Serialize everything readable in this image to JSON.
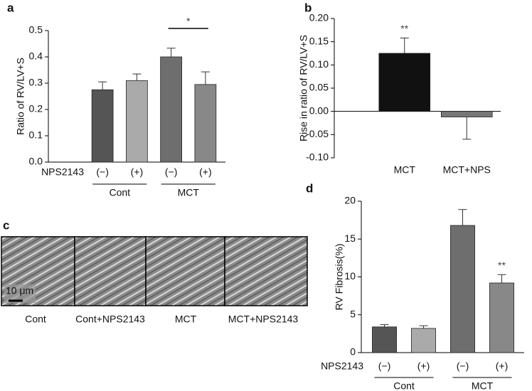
{
  "chart_data": [
    {
      "type": "bar",
      "panel": "a",
      "y_label": "Ratio of RV/LV+S",
      "row_label": "NPS2143",
      "categories": [
        "(−)",
        "(+)",
        "(−)",
        "(+)"
      ],
      "groups": [
        "Cont",
        "MCT"
      ],
      "values": [
        0.275,
        0.31,
        0.4,
        0.295
      ],
      "errors": [
        0.03,
        0.025,
        0.033,
        0.048
      ],
      "colors": [
        "#555555",
        "#aaaaaa",
        "#6e6e6e",
        "#888888"
      ],
      "ylim": [
        0,
        0.5
      ],
      "yticks": [
        {
          "value": 0,
          "label": "0.0"
        },
        0.1,
        0.2,
        0.3,
        0.4,
        0.5
      ],
      "annotations": [
        "*"
      ]
    },
    {
      "type": "bar",
      "panel": "b",
      "y_label": "Rise in ratio of RV/LV+S",
      "categories": [
        "MCT",
        "MCT+NPS"
      ],
      "values": [
        0.125,
        -0.012
      ],
      "errors": [
        0.033,
        0.048
      ],
      "colors": [
        "#111111",
        "#777777"
      ],
      "ylim": [
        -0.1,
        0.2
      ],
      "yticks": [
        {
          "value": -0.1,
          "label": "-0.10"
        },
        {
          "value": -0.05,
          "label": "-0.05"
        },
        {
          "value": 0,
          "label": "0.00"
        },
        {
          "value": 0.05,
          "label": "0.05"
        },
        {
          "value": 0.1,
          "label": "0.10"
        },
        {
          "value": 0.15,
          "label": "0.15"
        },
        {
          "value": 0.2,
          "label": "0.20"
        }
      ],
      "annotations": [
        "**"
      ]
    },
    {
      "type": "bar",
      "panel": "d",
      "y_label": "RV Fibrosis(%)",
      "row_label": "NPS2143",
      "categories": [
        "(−)",
        "(+)",
        "(−)",
        "(+)"
      ],
      "groups": [
        "Cont",
        "MCT"
      ],
      "values": [
        3.4,
        3.2,
        16.8,
        9.2
      ],
      "errors": [
        0.3,
        0.35,
        2.1,
        1.1
      ],
      "colors": [
        "#555555",
        "#aaaaaa",
        "#6e6e6e",
        "#888888"
      ],
      "ylim": [
        0,
        20
      ],
      "yticks": [
        0,
        5,
        10,
        15,
        20
      ],
      "annotations": [
        "**"
      ]
    }
  ],
  "image_panel": {
    "panel": "c",
    "scale_bar": "10 μm",
    "captions": [
      "Cont",
      "Cont+NPS2143",
      "MCT",
      "MCT+NPS2143"
    ]
  }
}
